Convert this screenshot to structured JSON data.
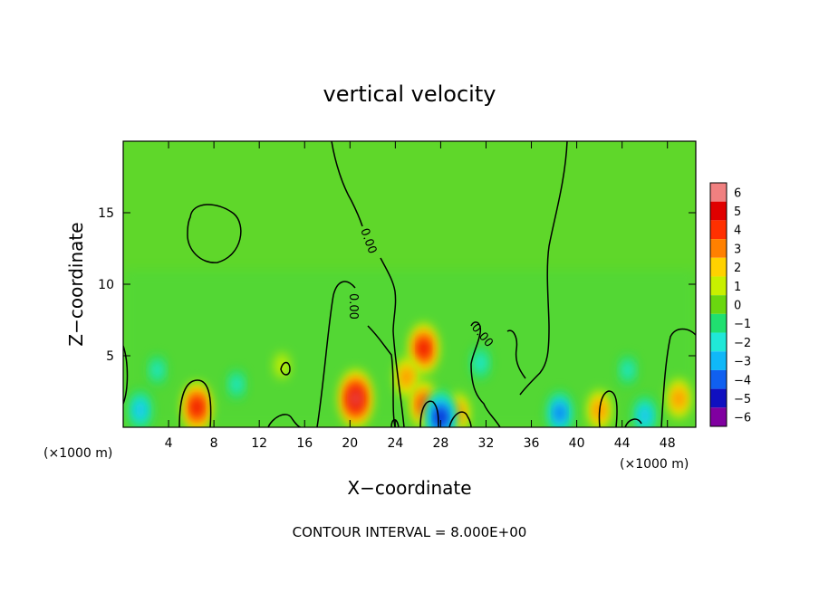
{
  "chart_data": {
    "type": "heatmap",
    "title": "vertical velocity",
    "xlabel": "X−coordinate",
    "ylabel": "Z−coordinate",
    "x_unit_left": "(×1000 m)",
    "x_unit_right": "(×1000 m)",
    "xlim": [
      0,
      50.5
    ],
    "ylim": [
      0,
      20
    ],
    "x_ticks": [
      4,
      8,
      12,
      16,
      20,
      24,
      28,
      32,
      36,
      40,
      44,
      48
    ],
    "y_ticks": [
      5,
      10,
      15
    ],
    "contour_label": "CONTOUR INTERVAL = 8.000E+00",
    "contour_line_labels": [
      "0.00",
      "0.00",
      "0.00"
    ],
    "colorbar": {
      "levels": [
        6,
        5,
        4,
        3,
        2,
        1,
        0,
        -1,
        -2,
        -3,
        -4,
        -5,
        -6
      ],
      "colors": [
        "#f08080",
        "#e00000",
        "#ff3000",
        "#ff8000",
        "#ffd200",
        "#c8f000",
        "#6ad70f",
        "#20e070",
        "#20e8d8",
        "#10b8f8",
        "#1060f0",
        "#1010c0",
        "#8000a0"
      ]
    },
    "background_value": 0.5,
    "features": [
      {
        "x": 6.5,
        "z": 1.4,
        "peak": 4.5
      },
      {
        "x": 20.5,
        "z": 2.0,
        "peak": 5.5
      },
      {
        "x": 26.5,
        "z": 5.5,
        "peak": 4.5
      },
      {
        "x": 25.0,
        "z": 3.5,
        "peak": 3.0
      },
      {
        "x": 26.5,
        "z": 1.6,
        "peak": 4.0
      },
      {
        "x": 29.5,
        "z": 1.0,
        "peak": 3.0
      },
      {
        "x": 42.0,
        "z": 1.2,
        "peak": 3.0
      },
      {
        "x": 49.0,
        "z": 2.0,
        "peak": 3.0
      },
      {
        "x": 1.5,
        "z": 1.2,
        "peak": -3.0
      },
      {
        "x": 28.0,
        "z": 0.7,
        "peak": -5.0
      },
      {
        "x": 38.5,
        "z": 1.0,
        "peak": -3.5
      },
      {
        "x": 46.0,
        "z": 0.8,
        "peak": -3.0
      },
      {
        "x": 31.5,
        "z": 4.5,
        "peak": -2.0
      },
      {
        "x": 3.0,
        "z": 4.0,
        "peak": -1.5
      },
      {
        "x": 10.0,
        "z": 3.0,
        "peak": -1.5
      },
      {
        "x": 44.5,
        "z": 4.0,
        "peak": -1.5
      },
      {
        "x": 14.0,
        "z": 4.3,
        "peak": 1.0
      }
    ]
  }
}
